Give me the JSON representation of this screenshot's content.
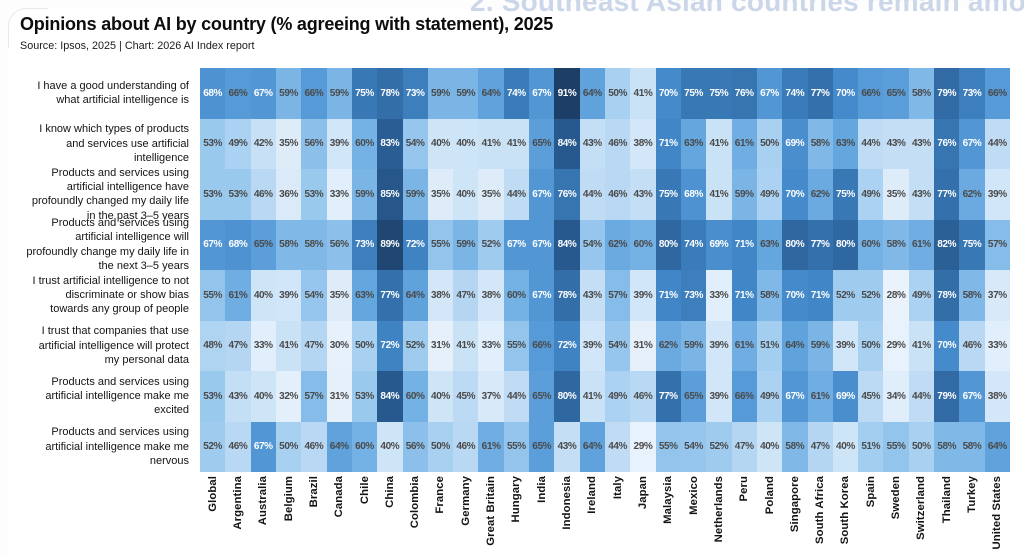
{
  "banner": {
    "text": "2. Southeast Asian countries remain among the"
  },
  "header": {
    "title": "Opinions about AI by country (% agreeing with statement), 2025",
    "source": "Source: Ipsos, 2025 | Chart: 2026 AI Index report"
  },
  "chart_data": {
    "type": "heatmap",
    "title": "Opinions about AI by country (% agreeing with statement), 2025",
    "unit": "%",
    "value_range": [
      28,
      91
    ],
    "categories": [
      "Global",
      "Argentina",
      "Australia",
      "Belgium",
      "Brazil",
      "Canada",
      "Chile",
      "China",
      "Colombia",
      "France",
      "Germany",
      "Great Britain",
      "Hungary",
      "India",
      "Indonesia",
      "Ireland",
      "Italy",
      "Japan",
      "Malaysia",
      "Mexico",
      "Netherlands",
      "Peru",
      "Poland",
      "Singapore",
      "South Africa",
      "South Korea",
      "Spain",
      "Sweden",
      "Switzerland",
      "Thailand",
      "Turkey",
      "United States"
    ],
    "rows": [
      {
        "statement": "I have a good understanding of what artificial intelligence is",
        "values": [
          68,
          66,
          67,
          59,
          66,
          59,
          75,
          78,
          73,
          59,
          59,
          64,
          74,
          67,
          91,
          64,
          50,
          41,
          70,
          75,
          75,
          76,
          67,
          74,
          77,
          70,
          66,
          65,
          58,
          79,
          73,
          66
        ]
      },
      {
        "statement": "I know which types of products and services use artificial intelligence",
        "values": [
          53,
          49,
          42,
          35,
          56,
          39,
          60,
          83,
          54,
          40,
          40,
          41,
          41,
          65,
          84,
          43,
          46,
          38,
          71,
          63,
          41,
          61,
          50,
          69,
          58,
          63,
          44,
          43,
          43,
          76,
          67,
          44
        ]
      },
      {
        "statement": "Products and services using artificial intelligence have profoundly changed my daily life in the past 3–5 years",
        "values": [
          53,
          53,
          46,
          36,
          53,
          33,
          59,
          85,
          59,
          35,
          40,
          35,
          44,
          67,
          76,
          44,
          46,
          43,
          75,
          68,
          41,
          59,
          49,
          70,
          62,
          75,
          49,
          35,
          43,
          77,
          62,
          39
        ]
      },
      {
        "statement": "Products and services using artificial intelligence will profoundly change my daily life in the next 3–5 years",
        "values": [
          67,
          68,
          65,
          58,
          58,
          56,
          73,
          89,
          72,
          55,
          59,
          52,
          67,
          67,
          84,
          54,
          62,
          60,
          80,
          74,
          69,
          71,
          63,
          80,
          77,
          80,
          60,
          58,
          61,
          82,
          75,
          57
        ]
      },
      {
        "statement": "I trust artificial intelligence to not discriminate or show bias towards any group of people",
        "values": [
          55,
          61,
          40,
          39,
          54,
          35,
          63,
          77,
          64,
          38,
          47,
          38,
          60,
          67,
          78,
          43,
          57,
          39,
          71,
          73,
          33,
          71,
          58,
          70,
          71,
          52,
          52,
          28,
          49,
          78,
          58,
          37
        ]
      },
      {
        "statement": "I trust that companies that use artificial intelligence will protect my personal data",
        "values": [
          48,
          47,
          33,
          41,
          47,
          30,
          50,
          72,
          52,
          31,
          41,
          33,
          55,
          66,
          72,
          39,
          54,
          31,
          62,
          59,
          39,
          61,
          51,
          64,
          59,
          39,
          50,
          29,
          41,
          70,
          46,
          33
        ]
      },
      {
        "statement": "Products and services using artificial intelligence make me excited",
        "values": [
          53,
          43,
          40,
          32,
          57,
          31,
          53,
          84,
          60,
          40,
          45,
          37,
          44,
          65,
          80,
          41,
          49,
          46,
          77,
          65,
          39,
          66,
          49,
          67,
          61,
          69,
          45,
          34,
          44,
          79,
          67,
          38
        ]
      },
      {
        "statement": "Products and services using artificial intelligence make me nervous",
        "values": [
          52,
          46,
          67,
          50,
          46,
          64,
          60,
          40,
          56,
          50,
          46,
          61,
          55,
          65,
          43,
          64,
          44,
          29,
          55,
          54,
          52,
          47,
          40,
          58,
          47,
          40,
          51,
          55,
          50,
          58,
          58,
          64
        ]
      }
    ],
    "style": {
      "color_scale_anchors": [
        [
          28,
          "#eaf3fc"
        ],
        [
          35,
          "#deecfa"
        ],
        [
          40,
          "#cee4f7"
        ],
        [
          45,
          "#bcdaf4"
        ],
        [
          50,
          "#a7d0f1"
        ],
        [
          55,
          "#92c4ec"
        ],
        [
          60,
          "#74b1e5"
        ],
        [
          64,
          "#5fa2dc"
        ],
        [
          67,
          "#5296d4"
        ],
        [
          71,
          "#4186c6"
        ],
        [
          75,
          "#3878b4"
        ],
        [
          80,
          "#2f67a0"
        ],
        [
          85,
          "#26568a"
        ],
        [
          91,
          "#1d3f67"
        ]
      ],
      "white_text_min": 67,
      "dark_text_color": "#4a4a4a",
      "white_text_color": "#ffffff",
      "legend": "none",
      "grid": "off"
    }
  }
}
